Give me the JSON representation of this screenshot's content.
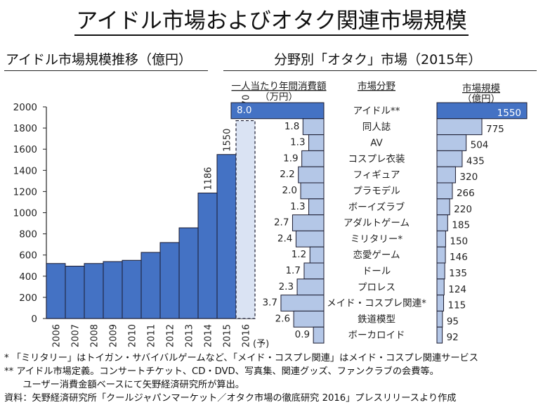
{
  "title": "アイドル市場およびオタク関連市場規模",
  "left_panel": {
    "title": "アイドル市場規模推移（億円）"
  },
  "right_panel": {
    "title": "分野別「オタク」市場（2015年）",
    "col_spend_header": "一人当たり年間消費額",
    "col_spend_unit": "（万円）",
    "col_field_header": "市場分野",
    "col_size_header": "市場規模",
    "col_size_unit": "（億円）"
  },
  "chart_data": [
    {
      "type": "bar",
      "title": "アイドル市場規模推移（億円）",
      "categories": [
        "2006",
        "2007",
        "2008",
        "2009",
        "2010",
        "2011",
        "2012",
        "2013",
        "2014",
        "2015",
        "2016"
      ],
      "forecast_suffix": "(予)",
      "values": [
        520,
        495,
        520,
        538,
        550,
        625,
        718,
        857,
        1186,
        1550,
        1870
      ],
      "labeled_values": [
        "",
        "",
        "",
        "",
        "",
        "",
        "",
        "",
        "1186",
        "1550",
        "1870"
      ],
      "forecast_index": 10,
      "ylim": [
        0,
        2000
      ],
      "yticks": [
        0,
        200,
        400,
        600,
        800,
        1000,
        1200,
        1400,
        1600,
        1800,
        2000
      ],
      "xlabel": "",
      "ylabel": "",
      "colors": {
        "actual": "#4472c4",
        "forecast": "#dae3f3"
      }
    },
    {
      "type": "bar",
      "orientation": "horizontal-butterfly",
      "title": "分野別「オタク」市場（2015年）",
      "categories": [
        "アイドル**",
        "同人誌",
        "AV",
        "コスプレ衣装",
        "フィギュア",
        "プラモデル",
        "ボーイズラブ",
        "アダルトゲーム",
        "ミリタリー*",
        "恋愛ゲーム",
        "ドール",
        "プロレス",
        "メイド・コスプレ関連*",
        "鉄道模型",
        "ボーカロイド"
      ],
      "series": [
        {
          "name": "一人当たり年間消費額（万円）",
          "values": [
            8.0,
            1.8,
            1.3,
            1.9,
            2.2,
            2.0,
            1.3,
            2.7,
            2.4,
            1.2,
            1.7,
            2.3,
            3.7,
            2.6,
            0.9
          ],
          "labels": [
            "8.0",
            "1.8",
            "1.3",
            "1.9",
            "2.2",
            "2.0",
            "1.3",
            "2.7",
            "2.4",
            "1.2",
            "1.7",
            "2.3",
            "3.7",
            "2.6",
            "0.9"
          ]
        },
        {
          "name": "市場規模（億円）",
          "values": [
            1550,
            775,
            504,
            435,
            320,
            266,
            220,
            185,
            150,
            146,
            135,
            124,
            115,
            95,
            92
          ],
          "labels": [
            "1550",
            "775",
            "504",
            "435",
            "320",
            "266",
            "220",
            "185",
            "150",
            "146",
            "135",
            "124",
            "115",
            "95",
            "92"
          ]
        }
      ],
      "highlight_index": 0,
      "colors": {
        "highlight": "#4472c4",
        "normal": "#b4c7e7"
      }
    }
  ],
  "notes": [
    "* 「ミリタリー」はトイガン・サバイバルゲームなど、「メイド・コスプレ関連」はメイド・コスプレ関連サービス",
    "** アイドル市場定義。コンサートチケット、CD・DVD、写真集、関連グッズ、ファンクラブの会費等。",
    "　　ユーザー消費金額ベースにて矢野経済研究所が算出。",
    "資料：矢野経済研究所「クールジャパンマーケット／オタク市場の徹底研究 2016」プレスリリースより作成"
  ]
}
